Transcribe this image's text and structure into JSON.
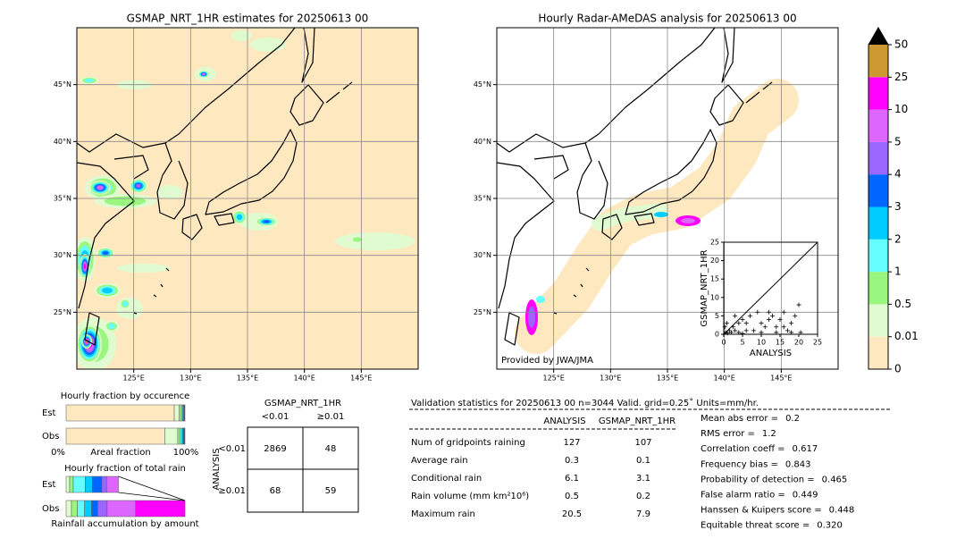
{
  "maps": [
    {
      "title": "GSMAP_NRT_1HR estimates for 20250613 00",
      "xlim": [
        120,
        150
      ],
      "ylim": [
        20,
        50
      ],
      "xticks": [
        {
          "value": 125,
          "label": "125°E"
        },
        {
          "value": 130,
          "label": "130°E"
        },
        {
          "value": 135,
          "label": "135°E"
        },
        {
          "value": 140,
          "label": "140°E"
        },
        {
          "value": 145,
          "label": "145°E"
        }
      ],
      "yticks": [
        {
          "value": 25,
          "label": "25°N"
        },
        {
          "value": 30,
          "label": "30°N"
        },
        {
          "value": 35,
          "label": "35°N"
        },
        {
          "value": 40,
          "label": "40°N"
        },
        {
          "value": 45,
          "label": "45°N"
        }
      ]
    },
    {
      "title": "Hourly Radar-AMeDAS analysis for 20250613 00",
      "credit": "Provided by JWA/JMA",
      "xlim": [
        120,
        150
      ],
      "ylim": [
        20,
        50
      ],
      "xticks": [
        {
          "value": 125,
          "label": "125°E"
        },
        {
          "value": 130,
          "label": "130°E"
        },
        {
          "value": 135,
          "label": "135°E"
        },
        {
          "value": 140,
          "label": "140°E"
        },
        {
          "value": 145,
          "label": "145°E"
        }
      ],
      "yticks": [
        {
          "value": 25,
          "label": "25°N"
        },
        {
          "value": 30,
          "label": "30°N"
        },
        {
          "value": 35,
          "label": "35°N"
        },
        {
          "value": 40,
          "label": "40°N"
        },
        {
          "value": 45,
          "label": "45°N"
        }
      ]
    }
  ],
  "colorbar": {
    "levels": [
      0,
      0.01,
      0.5,
      1,
      2,
      3,
      4,
      5,
      10,
      25,
      50
    ],
    "colors": [
      "#fee8c0",
      "#e0fbd0",
      "#99f780",
      "#66ffff",
      "#00ccff",
      "#0066ff",
      "#9966ff",
      "#dd66ff",
      "#ff00ff",
      "#cc9933"
    ],
    "extend_color": "#000000"
  },
  "scatter": {
    "type": "scatter",
    "xlabel": "ANALYSIS",
    "ylabel": "GSMAP_NRT_1HR",
    "xlim": [
      0,
      25
    ],
    "ylim": [
      0,
      25
    ],
    "xticks": [
      0,
      5,
      10,
      15,
      20,
      25
    ],
    "yticks": [
      0,
      5,
      10,
      15,
      20,
      25
    ],
    "x": [
      0.5,
      1,
      1.5,
      2,
      0.3,
      0.8,
      2.5,
      3,
      4,
      5,
      6,
      7,
      8,
      9,
      10,
      11,
      12,
      13,
      14,
      15,
      16,
      17,
      18,
      19,
      20,
      20.5,
      3,
      4,
      6,
      12,
      16,
      10,
      14,
      5,
      18
    ],
    "y": [
      0.5,
      0.3,
      1,
      0.5,
      2,
      3,
      2,
      1,
      0.5,
      4,
      3,
      5,
      1,
      6,
      0.5,
      2,
      4,
      5,
      0.5,
      4,
      2,
      1,
      3,
      5,
      8,
      0.5,
      5,
      3,
      1,
      6,
      6,
      3,
      2,
      0.2,
      0.5
    ]
  },
  "occurrence": {
    "title": "Hourly fraction by occurence",
    "rows": [
      "Est",
      "Obs"
    ],
    "xlabel": "Areal fraction",
    "left_label": "0%",
    "right_label": "100%",
    "series": [
      {
        "color": "#fee8c0",
        "values": [
          91,
          83
        ]
      },
      {
        "color": "#e0fbd0",
        "values": [
          4,
          11
        ]
      },
      {
        "color": "#99f780",
        "values": [
          2,
          2
        ]
      },
      {
        "color": "#66ffff",
        "values": [
          1,
          1.5
        ]
      },
      {
        "color": "#00ccff",
        "values": [
          1,
          1
        ]
      },
      {
        "color": "#0066ff",
        "values": [
          0.5,
          0.8
        ]
      },
      {
        "color": "#9966ff",
        "values": [
          0.3,
          0.4
        ]
      },
      {
        "color": "#000080",
        "values": [
          0.2,
          0.3
        ]
      }
    ]
  },
  "total_rain": {
    "title": "Hourly fraction of total rain",
    "rows": [
      "Est",
      "Obs"
    ],
    "xlabel": "Rainfall accumulation by amount",
    "series": [
      {
        "color": "#e0fbd0",
        "values": [
          3,
          4.5
        ]
      },
      {
        "color": "#99f780",
        "values": [
          3,
          5
        ]
      },
      {
        "color": "#66ffff",
        "values": [
          10,
          6
        ]
      },
      {
        "color": "#00ccff",
        "values": [
          6,
          6
        ]
      },
      {
        "color": "#0066ff",
        "values": [
          8,
          5
        ]
      },
      {
        "color": "#9966ff",
        "values": [
          4,
          8
        ]
      },
      {
        "color": "#dd66ff",
        "values": [
          10,
          24
        ]
      },
      {
        "color": "#ff00ff",
        "values": [
          0,
          41.5
        ]
      }
    ]
  },
  "contingency": {
    "title": "GSMAP_NRT_1HR",
    "columns": [
      "<0.01",
      "≥0.01"
    ],
    "row_title": "ANALYSIS",
    "rows": [
      "<0.01",
      "≥0.01"
    ],
    "cells": [
      [
        2869,
        48
      ],
      [
        68,
        59
      ]
    ]
  },
  "validation": {
    "header": "Validation statistics for 20250613 00  n=3044 Valid. grid=0.25˚ Units=mm/hr.",
    "columns": [
      "ANALYSIS",
      "GSMAP_NRT_1HR"
    ],
    "rows": [
      {
        "label": "Num of gridpoints raining",
        "values": [
          "127",
          "107"
        ]
      },
      {
        "label": "Average rain",
        "values": [
          "0.3",
          "0.1"
        ]
      },
      {
        "label": "Conditional rain",
        "values": [
          "6.1",
          "3.1"
        ]
      },
      {
        "label": "Rain volume (mm km²10⁶)",
        "values": [
          "0.5",
          "0.2"
        ]
      },
      {
        "label": "Maximum rain",
        "values": [
          "20.5",
          "7.9"
        ]
      }
    ],
    "scores": [
      {
        "label": "Mean abs error =",
        "value": "0.2"
      },
      {
        "label": "RMS error =",
        "value": "1.2"
      },
      {
        "label": "Correlation coeff =",
        "value": "0.617"
      },
      {
        "label": "Frequency bias =",
        "value": "0.843"
      },
      {
        "label": "Probability of detection =",
        "value": "0.465"
      },
      {
        "label": "False alarm ratio =",
        "value": "0.449"
      },
      {
        "label": "Hanssen & Kuipers score =",
        "value": "0.448"
      },
      {
        "label": "Equitable threat score =",
        "value": "0.320"
      }
    ]
  }
}
